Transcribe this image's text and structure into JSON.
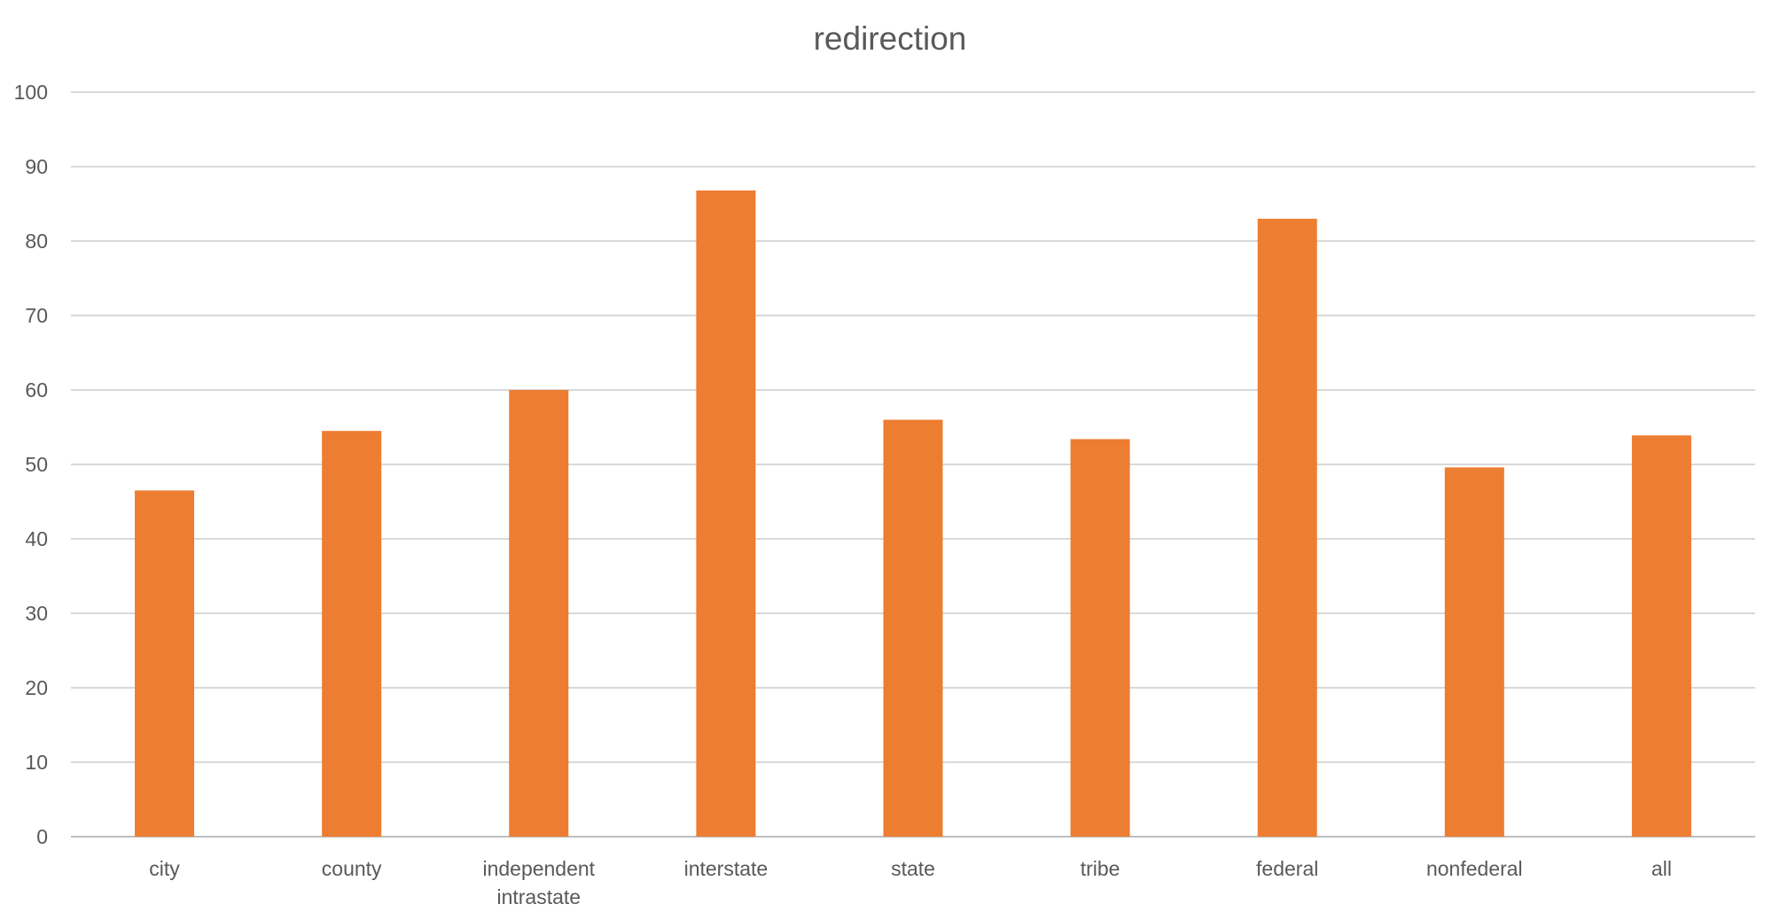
{
  "chart_data": {
    "type": "bar",
    "title": "redirection",
    "xlabel": "",
    "ylabel": "",
    "categories": [
      [
        "city"
      ],
      [
        "county"
      ],
      [
        "independent",
        "intrastate"
      ],
      [
        "interstate"
      ],
      [
        "state"
      ],
      [
        "tribe"
      ],
      [
        "federal"
      ],
      [
        "nonfederal"
      ],
      [
        "all"
      ]
    ],
    "values": [
      46.5,
      54.5,
      60,
      86.8,
      56,
      53.4,
      83,
      49.6,
      53.9
    ],
    "ylim": [
      0,
      100
    ],
    "yticks": [
      "0",
      "10",
      "20",
      "30",
      "40",
      "50",
      "60",
      "70",
      "80",
      "90",
      "100"
    ],
    "grid": true,
    "legend": "none",
    "colors": {
      "bar": "#ED7D31",
      "grid": "#D9D9D9",
      "axis": "#BFBFBF",
      "text": "#595959"
    }
  }
}
